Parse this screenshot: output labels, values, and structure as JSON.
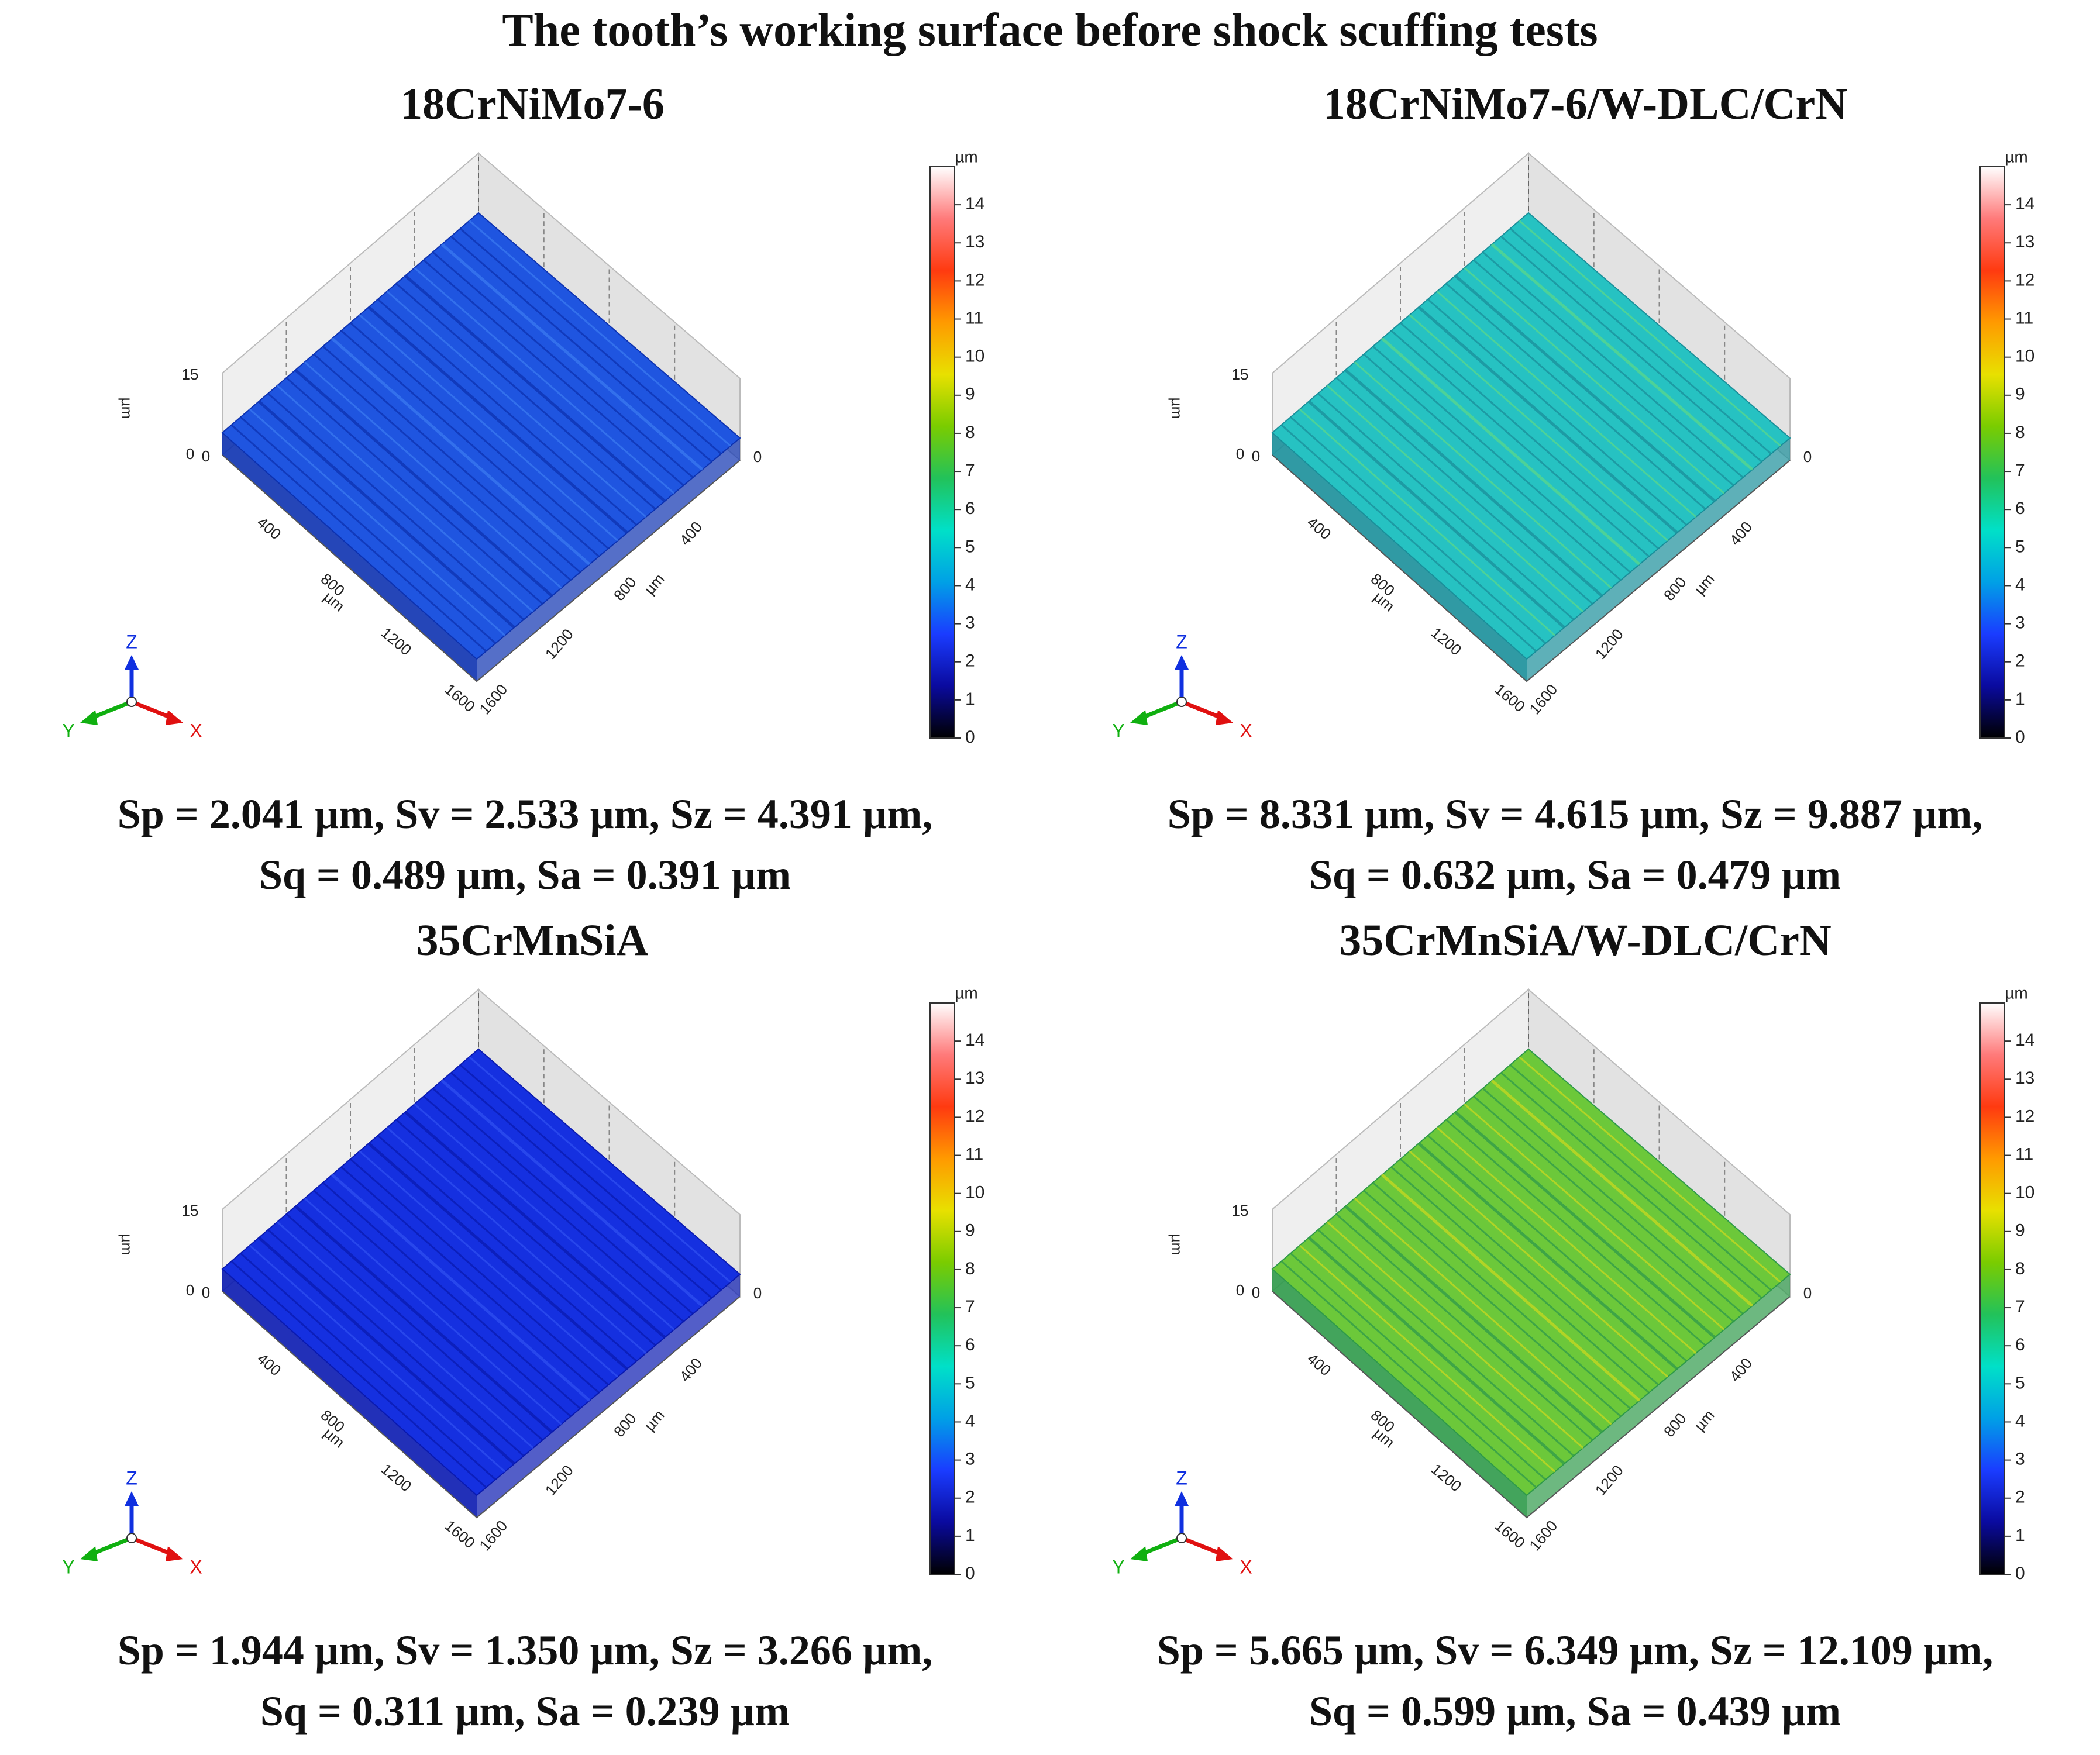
{
  "title": "The tooth’s working surface before shock scuffing tests",
  "colorbar": {
    "unit": "µm",
    "ticks": [
      "0",
      "1",
      "2",
      "3",
      "4",
      "5",
      "6",
      "7",
      "8",
      "9",
      "10",
      "11",
      "12",
      "13",
      "14"
    ],
    "stops": [
      "#000000",
      "#0a0a9e",
      "#1a3cff",
      "#00a0e6",
      "#00e0c8",
      "#22c25a",
      "#7acc00",
      "#e8e000",
      "#ff9a00",
      "#ff3a10",
      "#ff7a7a",
      "#ffffff"
    ]
  },
  "axes": {
    "z_unit": "µm",
    "z_max": "15",
    "z_min": "0",
    "x_origin": "0",
    "y_origin": "0",
    "left_ticks": [
      "400",
      "800",
      "1200",
      "1600"
    ],
    "right_ticks": [
      "400",
      "800",
      "1200",
      "1600"
    ],
    "left_unit": "µm",
    "right_unit": "µm",
    "triad": {
      "z": "Z",
      "y": "Y",
      "x": "X"
    }
  },
  "panels": [
    {
      "title": "18CrNiMo7-6",
      "stats_line1": "Sp = 2.041 µm, Sv = 2.533 µm, Sz = 4.391 µm,",
      "stats_line2": "Sq = 0.489 µm, Sa = 0.391 µm",
      "surface_color": "#1f55e0",
      "stripe_color": "#0d32b0",
      "highlight_color": "#3a7af0"
    },
    {
      "title": "18CrNiMo7-6/W-DLC/CrN",
      "stats_line1": "Sp = 8.331 µm, Sv = 4.615 µm, Sz = 9.887 µm,",
      "stats_line2": "Sq = 0.632 µm, Sa = 0.479 µm",
      "surface_color": "#26c2c2",
      "stripe_color": "#1a8f9a",
      "highlight_color": "#5ad88a"
    },
    {
      "title": "35CrMnSiA",
      "stats_line1": "Sp = 1.944 µm, Sv = 1.350 µm, Sz = 3.266 µm,",
      "stats_line2": "Sq = 0.311 µm, Sa = 0.239 µm",
      "surface_color": "#1530e0",
      "stripe_color": "#0a1ab0",
      "highlight_color": "#2f4ff0"
    },
    {
      "title": "35CrMnSiA/W-DLC/CrN",
      "stats_line1": "Sp = 5.665 µm, Sv = 6.349 µm, Sz = 12.109 µm,",
      "stats_line2": "Sq = 0.599 µm, Sa = 0.439 µm",
      "surface_color": "#6cc83a",
      "stripe_color": "#2f9a4a",
      "highlight_color": "#c8d820"
    }
  ]
}
